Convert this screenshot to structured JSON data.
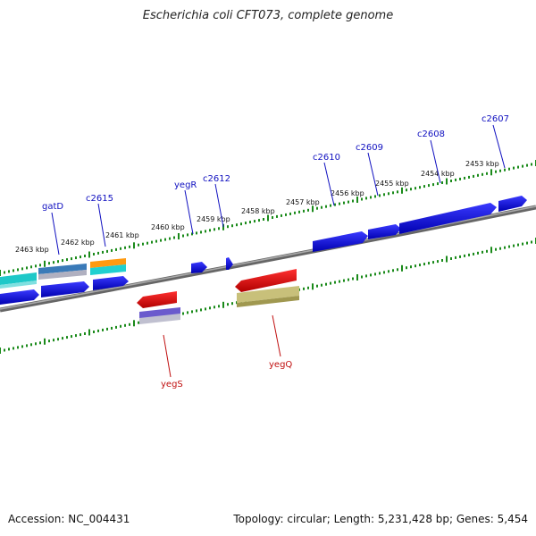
{
  "title": "Escherichia coli CFT073, complete genome",
  "footer": {
    "accession": "Accession: NC_004431",
    "topology": "Topology: circular; Length: 5,231,428 bp; Genes: 5,454"
  },
  "colors": {
    "backbone": "#888888",
    "tick": "#1a8a1a",
    "plus_strand": "#0000ee",
    "minus_strand": "#ee1111",
    "label_plus": "#1010c0",
    "label_minus": "#c01010"
  },
  "scale_labels": [
    "2463 kbp",
    "2462 kbp",
    "2461 kbp",
    "2460 kbp",
    "2459 kbp",
    "2458 kbp",
    "2457 kbp",
    "2456 kbp",
    "2455 kbp",
    "2454 kbp",
    "2453 kbp"
  ],
  "genes_top": [
    {
      "name": "gatD"
    },
    {
      "name": "c2615"
    },
    {
      "name": "yegR"
    },
    {
      "name": "c2612"
    },
    {
      "name": "c2610"
    },
    {
      "name": "c2609"
    },
    {
      "name": "c2608"
    },
    {
      "name": "c2607"
    }
  ],
  "genes_bottom": [
    {
      "name": "yegS"
    },
    {
      "name": "yegQ"
    }
  ]
}
